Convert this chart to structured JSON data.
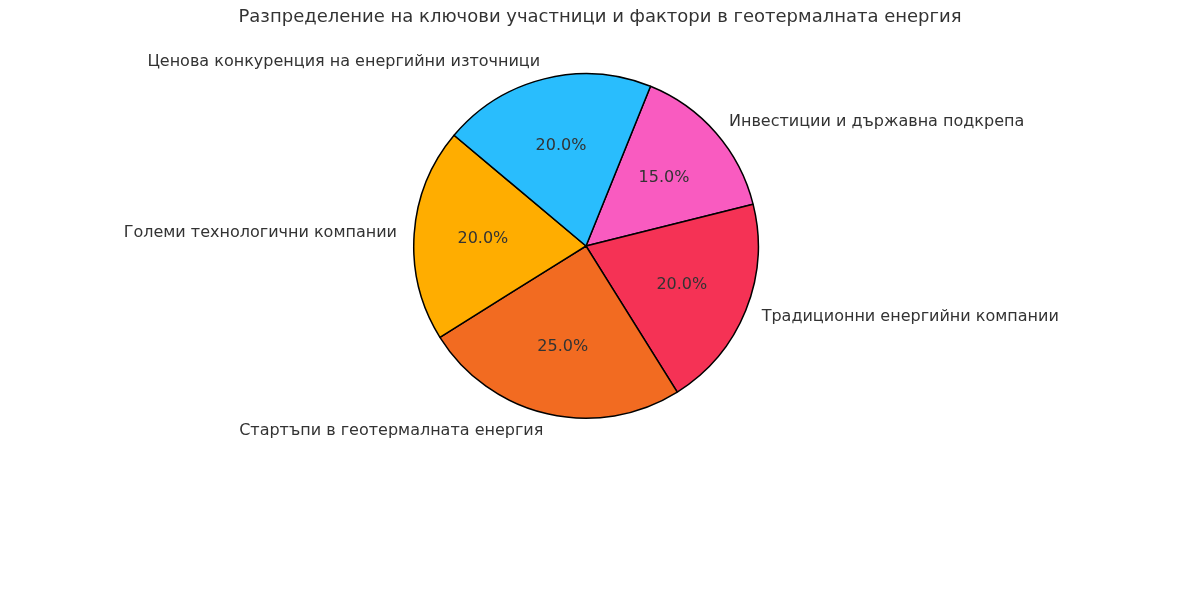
{
  "chart_data": {
    "type": "pie",
    "title": "Разпределение на ключови участници и фактори в геотермалната енергия",
    "categories": [
      "Инвестиции и държавна подкрепа",
      "Традиционни енергийни компании",
      "Стартъпи в геотермалната енергия",
      "Големи технологични компании",
      "Ценова конкуренция на енергийни източници"
    ],
    "values": [
      15,
      20,
      25,
      20,
      20
    ],
    "colors": [
      "#f95bc0",
      "#f53255",
      "#f26b21",
      "#ffad00",
      "#29bdfd"
    ],
    "value_labels": [
      "15.0%",
      "20.0%",
      "25.0%",
      "20.0%",
      "20.0%"
    ],
    "legend": false
  }
}
